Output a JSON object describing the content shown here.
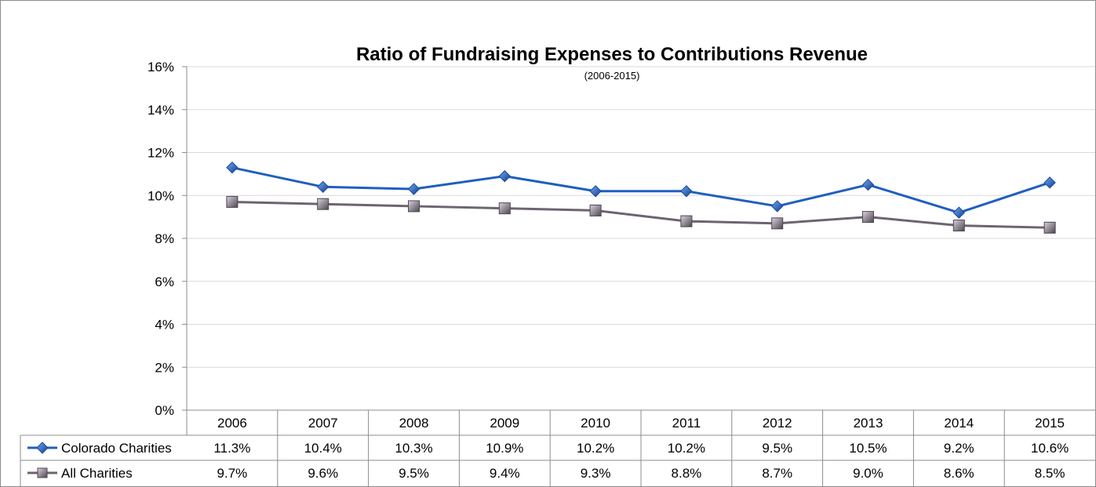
{
  "chart_data": {
    "type": "line",
    "title": "Ratio of Fundraising Expenses to Contributions Revenue",
    "subtitle": "(2006-2015)",
    "categories": [
      "2006",
      "2007",
      "2008",
      "2009",
      "2010",
      "2011",
      "2012",
      "2013",
      "2014",
      "2015"
    ],
    "ylim": [
      0,
      16
    ],
    "y_ticks": [
      "0%",
      "2%",
      "4%",
      "6%",
      "8%",
      "10%",
      "12%",
      "14%",
      "16%"
    ],
    "grid": true,
    "legend": "data-table",
    "series": [
      {
        "name": "Colorado Charities",
        "color": "#1f5fbf",
        "marker": "diamond",
        "values": [
          11.3,
          10.4,
          10.3,
          10.9,
          10.2,
          10.2,
          9.5,
          10.5,
          9.2,
          10.6
        ],
        "labels": [
          "11.3%",
          "10.4%",
          "10.3%",
          "10.9%",
          "10.2%",
          "10.2%",
          "9.5%",
          "10.5%",
          "9.2%",
          "10.6%"
        ]
      },
      {
        "name": "All Charities",
        "color": "#6d6470",
        "marker": "square",
        "values": [
          9.7,
          9.6,
          9.5,
          9.4,
          9.3,
          8.8,
          8.7,
          9.0,
          8.6,
          8.5
        ],
        "labels": [
          "9.7%",
          "9.6%",
          "9.5%",
          "9.4%",
          "9.3%",
          "8.8%",
          "8.7%",
          "9.0%",
          "8.6%",
          "8.5%"
        ]
      }
    ]
  }
}
